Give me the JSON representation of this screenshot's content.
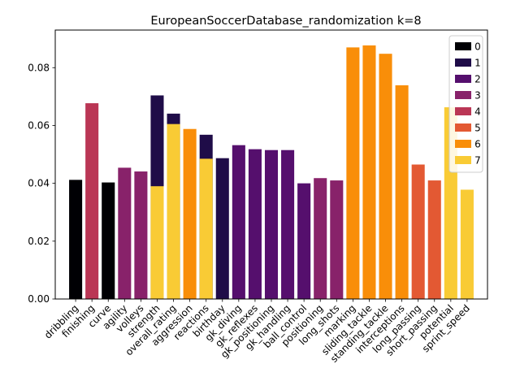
{
  "chart_data": {
    "type": "bar",
    "stacked": true,
    "title": "EuropeanSoccerDatabase_randomization k=8",
    "xlabel": "",
    "ylabel": "",
    "ylim": [
      0,
      0.093
    ],
    "yticks": [
      "0.00",
      "0.02",
      "0.04",
      "0.06",
      "0.08"
    ],
    "grid": false,
    "legend_position": "top-right",
    "legend": [
      {
        "label": "0",
        "color": "#000004"
      },
      {
        "label": "1",
        "color": "#1f0c48"
      },
      {
        "label": "2",
        "color": "#550f6d"
      },
      {
        "label": "3",
        "color": "#88226a"
      },
      {
        "label": "4",
        "color": "#ba3655"
      },
      {
        "label": "5",
        "color": "#e35933"
      },
      {
        "label": "6",
        "color": "#f98e09"
      },
      {
        "label": "7",
        "color": "#f9cb35"
      }
    ],
    "categories": [
      "dribbling",
      "finishing",
      "curve",
      "agility",
      "volleys",
      "strength",
      "overall_rating",
      "aggression",
      "reactions",
      "birthday",
      "gk_diving",
      "gk_reflexes",
      "gk_positioning",
      "gk_handling",
      "ball_control",
      "positioning",
      "long_shots",
      "marking",
      "sliding_tackle",
      "standing_tackle",
      "interceptions",
      "long_passing",
      "short_passing",
      "potential",
      "sprint_speed"
    ],
    "bars": [
      {
        "category": "dribbling",
        "segments": [
          {
            "cluster": "0",
            "value": 0.0412
          }
        ]
      },
      {
        "category": "finishing",
        "segments": [
          {
            "cluster": "4",
            "value": 0.0677
          }
        ]
      },
      {
        "category": "curve",
        "segments": [
          {
            "cluster": "0",
            "value": 0.0403
          }
        ]
      },
      {
        "category": "agility",
        "segments": [
          {
            "cluster": "3",
            "value": 0.0454
          }
        ]
      },
      {
        "category": "volleys",
        "segments": [
          {
            "cluster": "3",
            "value": 0.0441
          }
        ]
      },
      {
        "category": "strength",
        "segments": [
          {
            "cluster": "7",
            "value": 0.039
          },
          {
            "cluster": "1",
            "value": 0.0704
          }
        ]
      },
      {
        "category": "overall_rating",
        "segments": [
          {
            "cluster": "7",
            "value": 0.0605
          },
          {
            "cluster": "1",
            "value": 0.0641
          }
        ]
      },
      {
        "category": "aggression",
        "segments": [
          {
            "cluster": "6",
            "value": 0.0588
          }
        ]
      },
      {
        "category": "reactions",
        "segments": [
          {
            "cluster": "7",
            "value": 0.0485
          },
          {
            "cluster": "1",
            "value": 0.0568
          }
        ]
      },
      {
        "category": "birthday",
        "segments": [
          {
            "cluster": "1",
            "value": 0.0487
          }
        ]
      },
      {
        "category": "gk_diving",
        "segments": [
          {
            "cluster": "2",
            "value": 0.0532
          }
        ]
      },
      {
        "category": "gk_reflexes",
        "segments": [
          {
            "cluster": "2",
            "value": 0.0518
          }
        ]
      },
      {
        "category": "gk_positioning",
        "segments": [
          {
            "cluster": "2",
            "value": 0.0515
          }
        ]
      },
      {
        "category": "gk_handling",
        "segments": [
          {
            "cluster": "2",
            "value": 0.0515
          }
        ]
      },
      {
        "category": "ball_control",
        "segments": [
          {
            "cluster": "2",
            "value": 0.04
          }
        ]
      },
      {
        "category": "positioning",
        "segments": [
          {
            "cluster": "3",
            "value": 0.0418
          }
        ]
      },
      {
        "category": "long_shots",
        "segments": [
          {
            "cluster": "3",
            "value": 0.041
          }
        ]
      },
      {
        "category": "marking",
        "segments": [
          {
            "cluster": "6",
            "value": 0.087
          }
        ]
      },
      {
        "category": "sliding_tackle",
        "segments": [
          {
            "cluster": "6",
            "value": 0.0877
          }
        ]
      },
      {
        "category": "standing_tackle",
        "segments": [
          {
            "cluster": "6",
            "value": 0.0848
          }
        ]
      },
      {
        "category": "interceptions",
        "segments": [
          {
            "cluster": "6",
            "value": 0.0739
          }
        ]
      },
      {
        "category": "long_passing",
        "segments": [
          {
            "cluster": "5",
            "value": 0.0465
          }
        ]
      },
      {
        "category": "short_passing",
        "segments": [
          {
            "cluster": "5",
            "value": 0.041
          }
        ]
      },
      {
        "category": "potential",
        "segments": [
          {
            "cluster": "7",
            "value": 0.0663
          }
        ]
      },
      {
        "category": "sprint_speed",
        "segments": [
          {
            "cluster": "7",
            "value": 0.0378
          }
        ]
      }
    ]
  }
}
